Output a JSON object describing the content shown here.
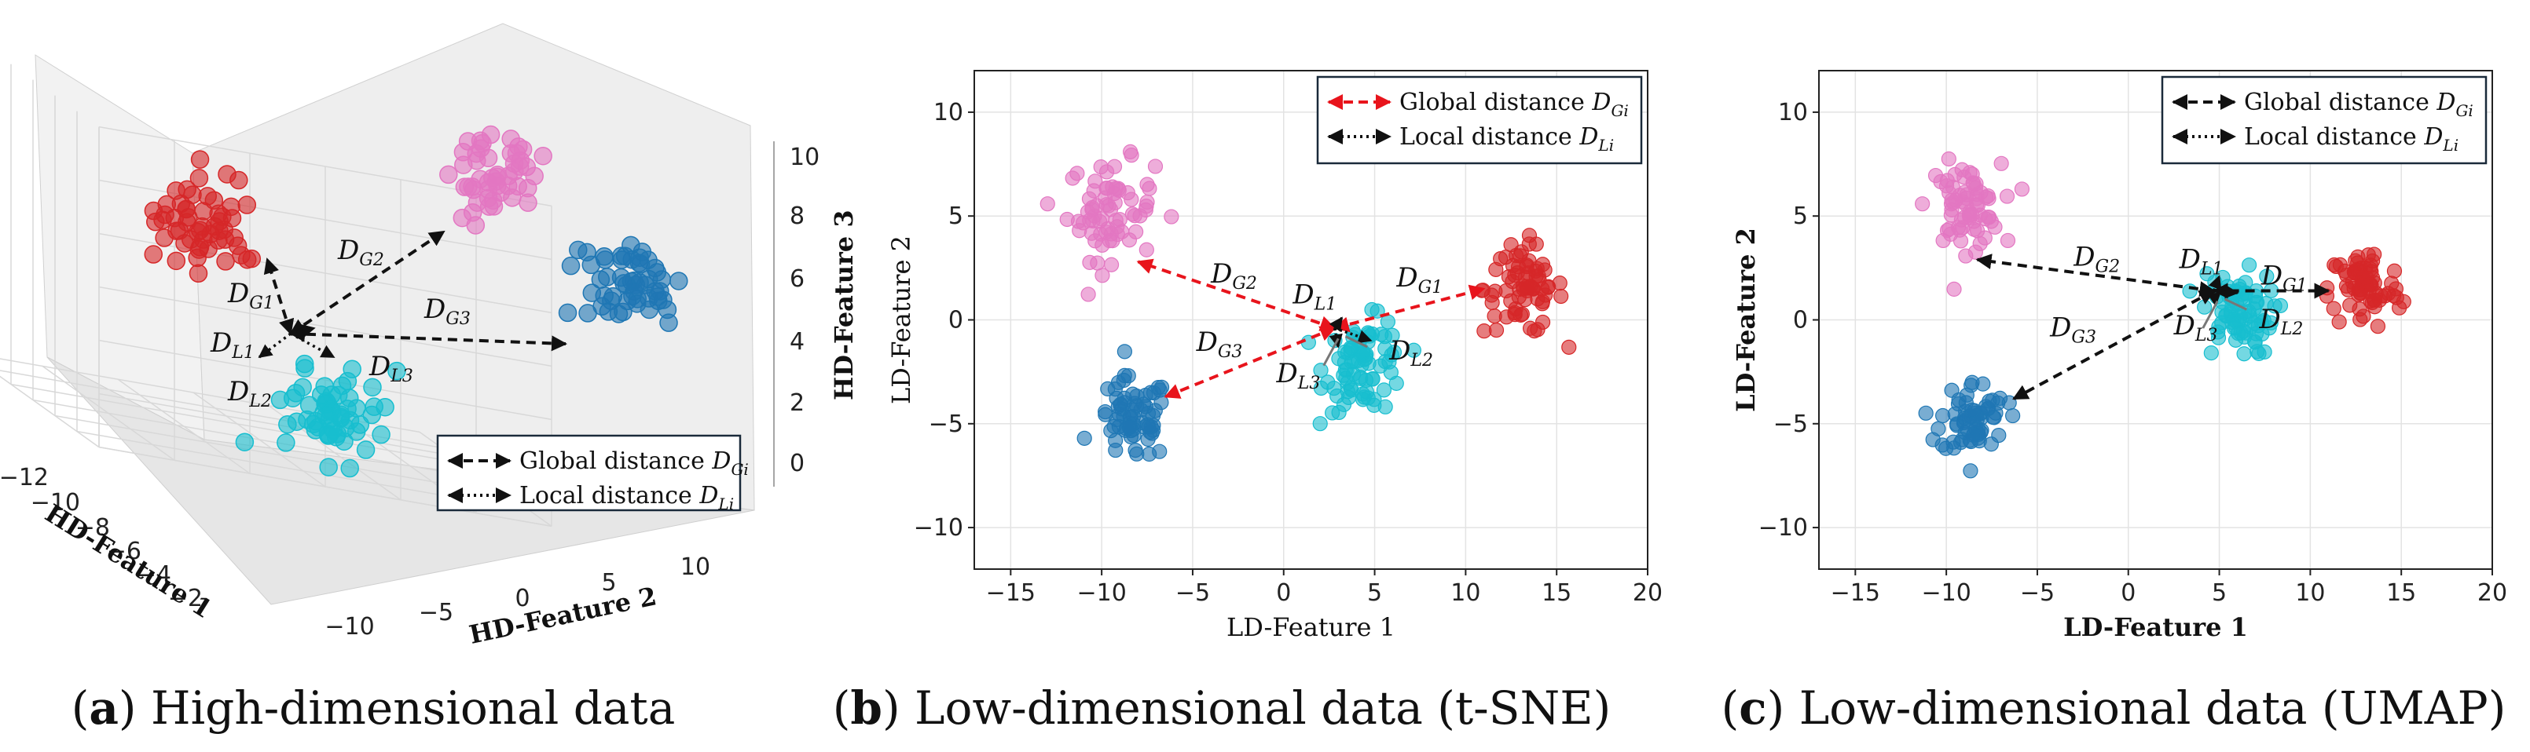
{
  "colors": {
    "red": "#d62728",
    "pink": "#e377c2",
    "blue": "#1f77b4",
    "cyan": "#17becf",
    "arrow_black": "#111111",
    "arrow_red": "#e8141c"
  },
  "chart_data": [
    {
      "id": "a",
      "type": "scatter",
      "projection": "3d",
      "caption_letter": "a",
      "caption_text": "High-dimensional data",
      "xlabel": "HD-Feature 1",
      "ylabel": "HD-Feature 2",
      "zlabel": "HD-Feature 3",
      "x_ticks": [
        "−12",
        "−10",
        "−8",
        "−6",
        "−4",
        "−2"
      ],
      "y_ticks": [
        "−10",
        "−5",
        "0",
        "5",
        "10"
      ],
      "z_ticks": [
        "0",
        "2",
        "4",
        "6",
        "8",
        "10"
      ],
      "clusters": [
        {
          "color": "red",
          "center": [
            -9.5,
            -9.0,
            9.0
          ],
          "spread": 1.3,
          "n": 55
        },
        {
          "color": "pink",
          "center": [
            -4.0,
            2.5,
            11.0
          ],
          "spread": 1.2,
          "n": 50
        },
        {
          "color": "blue",
          "center": [
            -4.5,
            9.5,
            7.5
          ],
          "spread": 1.3,
          "n": 55
        },
        {
          "color": "cyan",
          "center": [
            -4.0,
            -6.5,
            2.5
          ],
          "spread": 1.2,
          "n": 60
        }
      ],
      "annotations": [
        {
          "base": "D",
          "sub": "G1"
        },
        {
          "base": "D",
          "sub": "G2"
        },
        {
          "base": "D",
          "sub": "G3"
        },
        {
          "base": "D",
          "sub": "L1"
        },
        {
          "base": "D",
          "sub": "L2"
        },
        {
          "base": "D",
          "sub": "L3"
        }
      ],
      "legend": [
        {
          "label": "Global distance",
          "math_base": "D",
          "math_sub": "Gi",
          "style": "dashed",
          "color": "arrow_black"
        },
        {
          "label": "Local distance",
          "math_base": "D",
          "math_sub": "Li",
          "style": "dotted",
          "color": "arrow_black"
        }
      ]
    },
    {
      "id": "b",
      "type": "scatter",
      "caption_letter": "b",
      "caption_text": "Low-dimensional data (t-SNE)",
      "xlabel": "LD-Feature 1",
      "ylabel": "LD-Feature 2",
      "xlim": [
        -17,
        20
      ],
      "ylim": [
        -12,
        12
      ],
      "xticks": [
        -15,
        -10,
        -5,
        0,
        5,
        10,
        15,
        20
      ],
      "yticks": [
        -10,
        -5,
        0,
        5,
        10
      ],
      "grid": true,
      "clusters": [
        {
          "color": "pink",
          "center": [
            -9.5,
            5.3
          ],
          "spread": 1.2,
          "n": 70
        },
        {
          "color": "red",
          "center": [
            13.2,
            1.5
          ],
          "spread": 1.1,
          "n": 70
        },
        {
          "color": "blue",
          "center": [
            -8.3,
            -4.8
          ],
          "spread": 1.0,
          "n": 70
        },
        {
          "color": "cyan",
          "center": [
            4.5,
            -2.2
          ],
          "spread": 1.1,
          "n": 80
        }
      ],
      "arrow_color": "arrow_red",
      "origin": [
        2.8,
        -0.4
      ],
      "arrows_global": [
        [
          -8.0,
          2.8
        ],
        [
          11.0,
          1.5
        ],
        [
          -6.5,
          -3.7
        ]
      ],
      "arrows_local": [
        [
          3.2,
          0.1
        ],
        [
          4.8,
          -1.0
        ],
        [
          3.0,
          -1.3
        ]
      ],
      "annotations": [
        {
          "base": "D",
          "sub": "G1",
          "at": [
            6.2,
            1.6
          ]
        },
        {
          "base": "D",
          "sub": "G2",
          "at": [
            -4.0,
            1.8
          ]
        },
        {
          "base": "D",
          "sub": "G3",
          "at": [
            -4.8,
            -1.5
          ]
        },
        {
          "base": "D",
          "sub": "L1",
          "at": [
            0.5,
            0.8
          ]
        },
        {
          "base": "D",
          "sub": "L2",
          "at": [
            5.8,
            -1.9
          ]
        },
        {
          "base": "D",
          "sub": "L3",
          "at": [
            -0.4,
            -3.0
          ]
        }
      ],
      "legend": [
        {
          "label": "Global distance",
          "math_base": "D",
          "math_sub": "Gi",
          "style": "dashed",
          "color": "arrow_red"
        },
        {
          "label": "Local distance",
          "math_base": "D",
          "math_sub": "Li",
          "style": "dotted",
          "color": "arrow_black"
        }
      ]
    },
    {
      "id": "c",
      "type": "scatter",
      "caption_letter": "c",
      "caption_text": "Low-dimensional data (UMAP)",
      "xlabel": "LD-Feature 1",
      "ylabel": "LD-Feature 2",
      "xlim": [
        -17,
        20
      ],
      "ylim": [
        -12,
        12
      ],
      "xticks": [
        -15,
        -10,
        -5,
        0,
        5,
        10,
        15,
        20
      ],
      "yticks": [
        -10,
        -5,
        0,
        5,
        10
      ],
      "grid": true,
      "clusters": [
        {
          "color": "pink",
          "center": [
            -9.0,
            5.5
          ],
          "spread": 1.0,
          "n": 70
        },
        {
          "color": "red",
          "center": [
            13.0,
            1.5
          ],
          "spread": 1.0,
          "n": 70
        },
        {
          "color": "blue",
          "center": [
            -8.5,
            -4.7
          ],
          "spread": 0.9,
          "n": 65
        },
        {
          "color": "cyan",
          "center": [
            6.0,
            0.3
          ],
          "spread": 1.0,
          "n": 80
        }
      ],
      "arrow_color": "arrow_black",
      "origin": [
        4.7,
        1.4
      ],
      "arrows_global": [
        [
          -8.3,
          2.9
        ],
        [
          11.0,
          1.4
        ],
        [
          -6.3,
          -3.8
        ]
      ],
      "arrows_local": [
        [
          5.0,
          2.1
        ],
        [
          6.0,
          1.3
        ],
        [
          4.8,
          0.7
        ]
      ],
      "annotations": [
        {
          "base": "D",
          "sub": "G1",
          "at": [
            7.3,
            1.7
          ]
        },
        {
          "base": "D",
          "sub": "G2",
          "at": [
            -3.0,
            2.6
          ]
        },
        {
          "base": "D",
          "sub": "G3",
          "at": [
            -4.3,
            -0.8
          ]
        },
        {
          "base": "D",
          "sub": "L1",
          "at": [
            2.8,
            2.5
          ]
        },
        {
          "base": "D",
          "sub": "L2",
          "at": [
            7.2,
            -0.4
          ]
        },
        {
          "base": "D",
          "sub": "L3",
          "at": [
            2.5,
            -0.7
          ]
        }
      ],
      "legend": [
        {
          "label": "Global distance",
          "math_base": "D",
          "math_sub": "Gi",
          "style": "dashed",
          "color": "arrow_black"
        },
        {
          "label": "Local distance",
          "math_base": "D",
          "math_sub": "Li",
          "style": "dotted",
          "color": "arrow_black"
        }
      ]
    }
  ]
}
